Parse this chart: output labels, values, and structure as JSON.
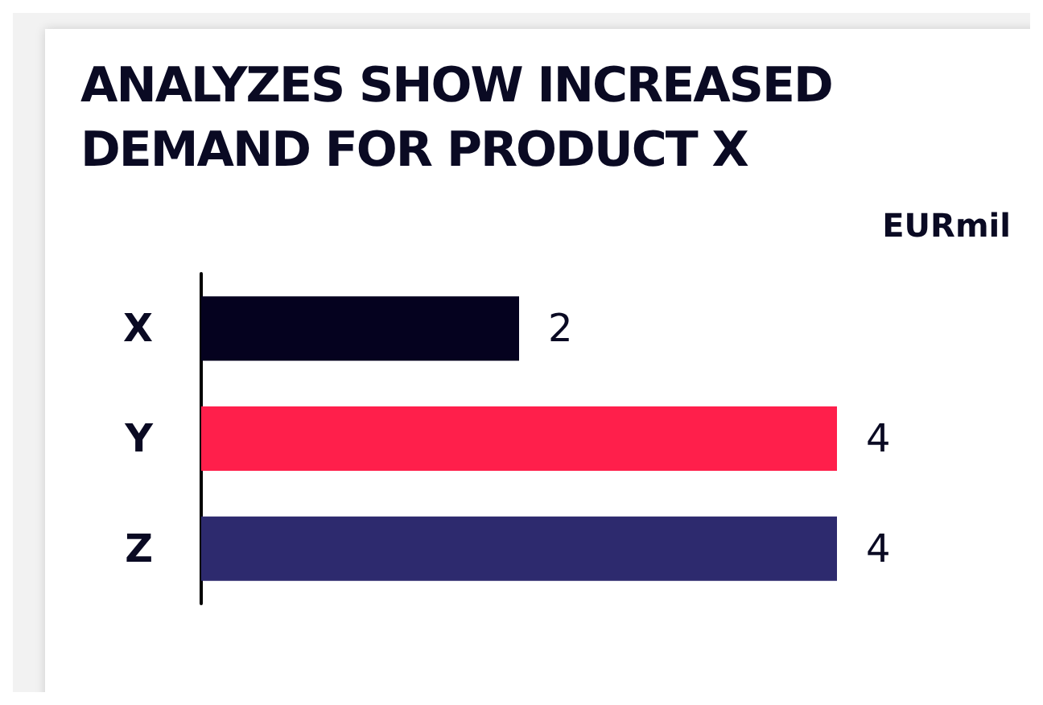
{
  "chart_data": {
    "type": "bar",
    "orientation": "horizontal",
    "title": "ANALYZES SHOW INCREASED DEMAND FOR PRODUCT X",
    "xlabel": "EURmil",
    "categories": [
      "X",
      "Y",
      "Z"
    ],
    "values": [
      2,
      4,
      4
    ],
    "colors": [
      "#05021f",
      "#ff1f4b",
      "#2d2a6e"
    ],
    "data_labels": true
  }
}
